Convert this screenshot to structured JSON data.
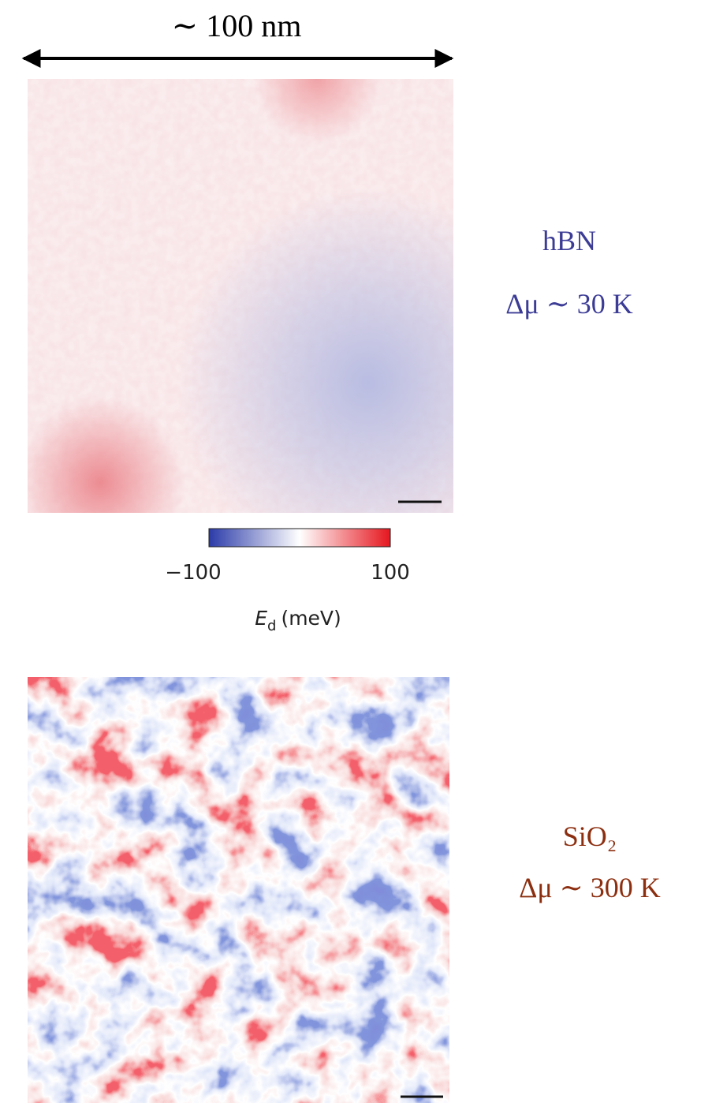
{
  "header": {
    "scale": "∼ 100 nm"
  },
  "panels": [
    {
      "substrate": "hBN",
      "spread": "Δμ ∼ 30 K"
    },
    {
      "substrate": "SiO₂",
      "spread": "Δμ ∼ 300 K"
    }
  ],
  "colorbar": {
    "min": "−100",
    "max": "100",
    "symbol": "E",
    "subscript": "d",
    "unit": "(meV)"
  }
}
